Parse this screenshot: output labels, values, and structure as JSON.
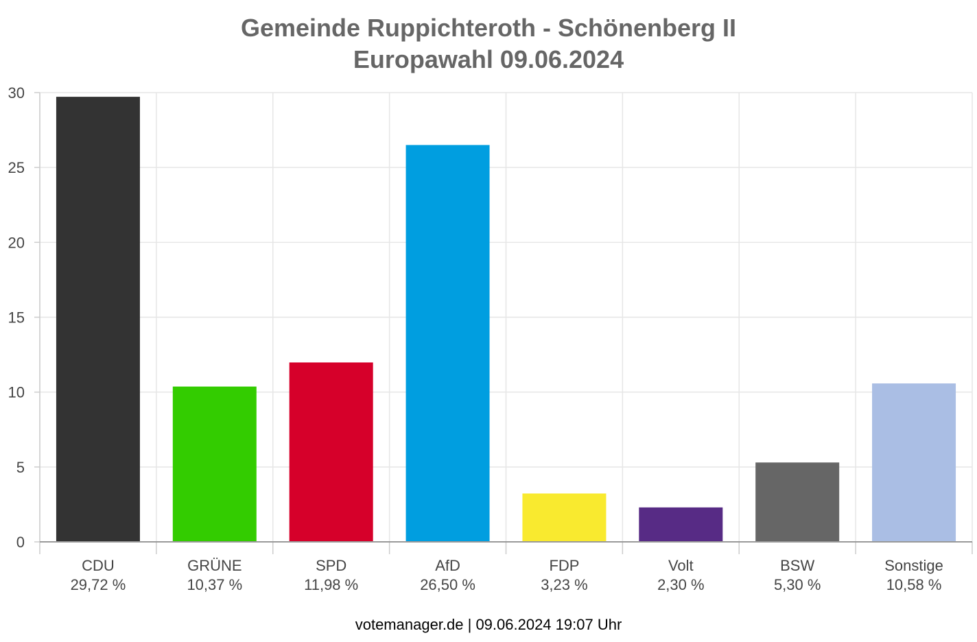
{
  "chart_data": {
    "type": "bar",
    "title": "Gemeinde Ruppichteroth - Schönenberg II",
    "subtitle": "Europawahl 09.06.2024",
    "categories": [
      "CDU",
      "GRÜNE",
      "SPD",
      "AfD",
      "FDP",
      "Volt",
      "BSW",
      "Sonstige"
    ],
    "values": [
      29.72,
      10.37,
      11.98,
      26.5,
      3.23,
      2.3,
      5.3,
      10.58
    ],
    "value_labels": [
      "29,72 %",
      "10,37 %",
      "11,98 %",
      "26,50 %",
      "3,23 %",
      "2,30 %",
      "5,30 %",
      "10,58 %"
    ],
    "colors": [
      "#333333",
      "#33cc00",
      "#d6002a",
      "#009ee0",
      "#f9ea2f",
      "#572b85",
      "#666666",
      "#aabee4"
    ],
    "ylim": [
      0,
      30
    ],
    "yticks": [
      0,
      5,
      10,
      15,
      20,
      25,
      30
    ],
    "grid": true,
    "xlabel": "",
    "ylabel": ""
  },
  "footer": "votemanager.de | 09.06.2024 19:07 Uhr"
}
